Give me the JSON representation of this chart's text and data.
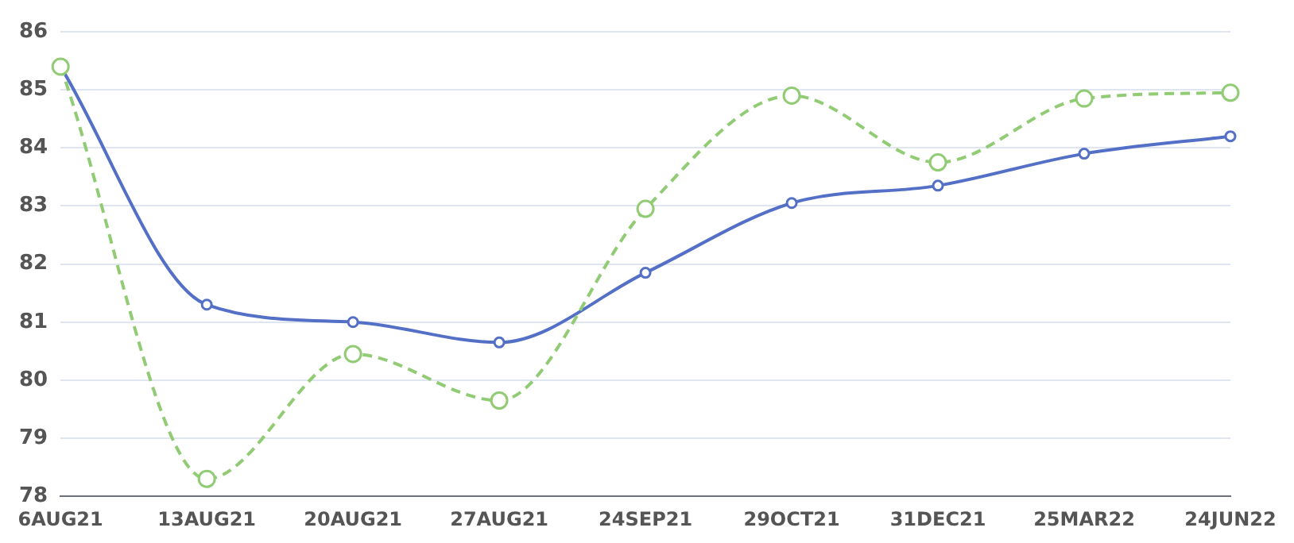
{
  "chart_data": {
    "type": "line",
    "categories": [
      "6AUG21",
      "13AUG21",
      "20AUG21",
      "27AUG21",
      "24SEP21",
      "29OCT21",
      "31DEC21",
      "25MAR22",
      "24JUN22"
    ],
    "series": [
      {
        "color": "#5470c6",
        "values": [
          85.4,
          81.3,
          81.0,
          80.65,
          81.85,
          83.05,
          83.35,
          83.9,
          84.2
        ],
        "line_style": "solid"
      },
      {
        "color": "#91cc75",
        "values": [
          85.4,
          78.3,
          80.45,
          79.65,
          82.95,
          84.9,
          83.75,
          84.85,
          84.95
        ],
        "line_style": "dashed"
      }
    ],
    "ylim": [
      78,
      86
    ],
    "yticks": [
      78,
      79,
      80,
      81,
      82,
      83,
      84,
      85,
      86
    ],
    "grid": "y",
    "marker": "circle",
    "legend": false
  }
}
